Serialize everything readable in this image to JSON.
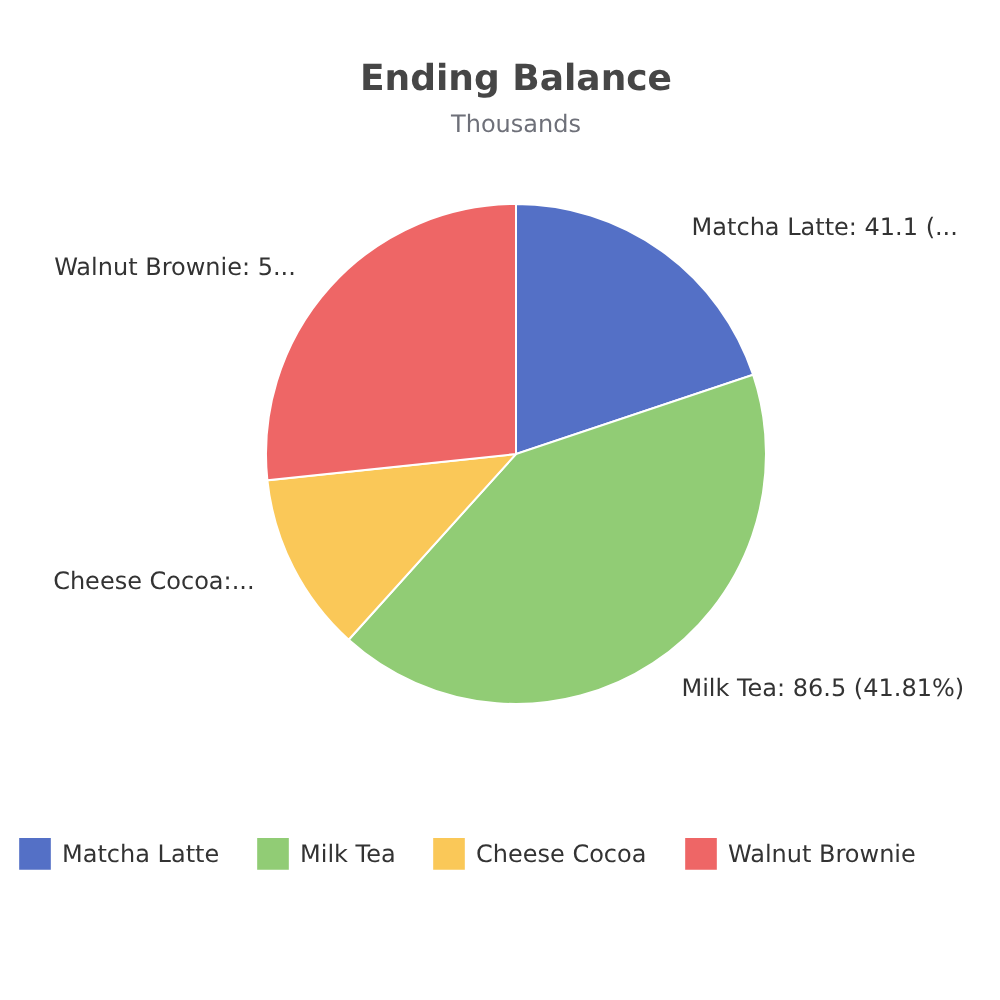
{
  "chart_data": {
    "type": "pie",
    "title": "Ending Balance",
    "subtitle": "Thousands",
    "categories": [
      "Matcha Latte",
      "Milk Tea",
      "Cheese Cocoa",
      "Walnut Brownie"
    ],
    "values": [
      41.1,
      86.5,
      24.1,
      55.2
    ],
    "colors": [
      "#5470c6",
      "#91cc75",
      "#fac858",
      "#ee6666"
    ],
    "value_labels": [
      "Matcha Latte: 41.1 (...",
      "Milk Tea: 86.5 (41.81%)",
      "Cheese Cocoa:...",
      "Walnut Brownie: 5..."
    ],
    "legend": "bottom"
  }
}
